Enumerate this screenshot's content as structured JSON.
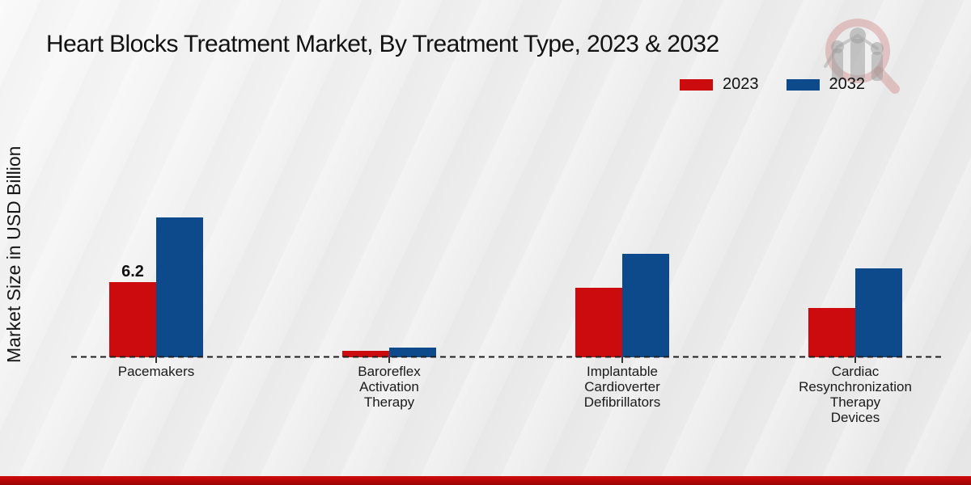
{
  "chart_data": {
    "type": "bar",
    "title": "Heart Blocks Treatment Market, By Treatment Type, 2023 & 2032",
    "ylabel": "Market Size in USD Billion",
    "xlabel": "",
    "categories": [
      "Pacemakers",
      "Baroreflex\nActivation\nTherapy",
      "Implantable\nCardioverter\nDefibrillators",
      "Cardiac\nResynchronization\nTherapy\nDevices"
    ],
    "series": [
      {
        "name": "2023",
        "color": "#cc0b0e",
        "values": [
          6.2,
          0.5,
          5.7,
          4.1
        ],
        "data_labels": [
          "6.2",
          "",
          "",
          ""
        ]
      },
      {
        "name": "2032",
        "color": "#0d4a8c",
        "values": [
          11.5,
          0.8,
          8.5,
          7.3
        ],
        "data_labels": [
          "",
          "",
          "",
          ""
        ]
      }
    ],
    "ylim": [
      0,
      12
    ],
    "grid": "off",
    "axis_style": "dashed zero baseline only, no tick values",
    "legend_position": "top-right"
  },
  "icons": {
    "watermark": "magnifier-bar-chart-logo"
  },
  "footer": {
    "accent_bar_color": "#9c0404",
    "accent_bar_color_top": "#d20b0b"
  },
  "style_colors": {
    "background": "#ececec",
    "title_text": "#121212",
    "baseline_dash": "#1f1f1f"
  }
}
